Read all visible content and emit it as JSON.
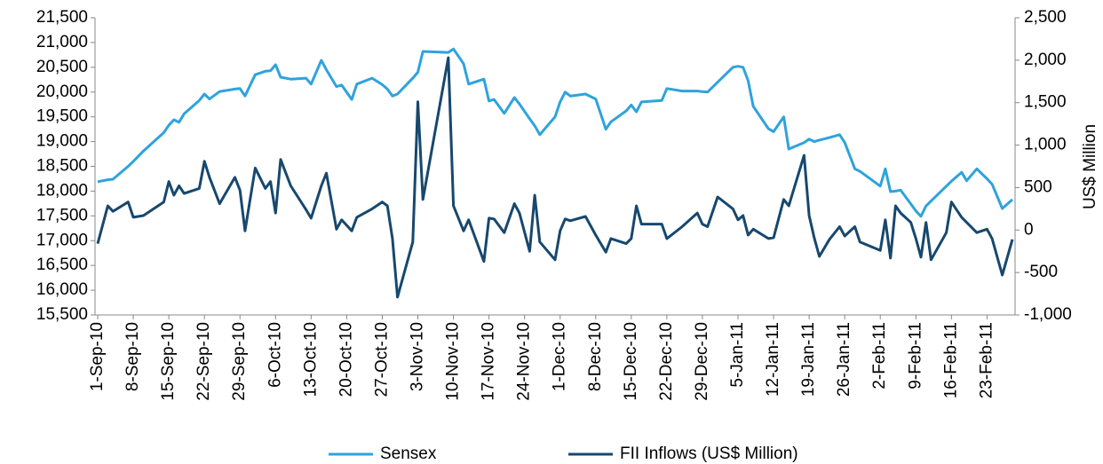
{
  "chart_data": {
    "type": "line",
    "x": [
      "2010-09-01",
      "2010-09-03",
      "2010-09-04",
      "2010-09-07",
      "2010-09-08",
      "2010-09-10",
      "2010-09-14",
      "2010-09-15",
      "2010-09-16",
      "2010-09-17",
      "2010-09-18",
      "2010-09-21",
      "2010-09-22",
      "2010-09-23",
      "2010-09-25",
      "2010-09-28",
      "2010-09-29",
      "2010-09-30",
      "2010-10-02",
      "2010-10-04",
      "2010-10-05",
      "2010-10-06",
      "2010-10-07",
      "2010-10-09",
      "2010-10-12",
      "2010-10-13",
      "2010-10-15",
      "2010-10-16",
      "2010-10-18",
      "2010-10-19",
      "2010-10-21",
      "2010-10-22",
      "2010-10-25",
      "2010-10-27",
      "2010-10-28",
      "2010-10-29",
      "2010-10-30",
      "2010-11-02",
      "2010-11-03",
      "2010-11-04",
      "2010-11-09",
      "2010-11-10",
      "2010-11-12",
      "2010-11-13",
      "2010-11-16",
      "2010-11-17",
      "2010-11-18",
      "2010-11-20",
      "2010-11-22",
      "2010-11-23",
      "2010-11-25",
      "2010-11-26",
      "2010-11-27",
      "2010-11-30",
      "2010-12-01",
      "2010-12-02",
      "2010-12-03",
      "2010-12-06",
      "2010-12-08",
      "2010-12-10",
      "2010-12-11",
      "2010-12-14",
      "2010-12-15",
      "2010-12-16",
      "2010-12-17",
      "2010-12-21",
      "2010-12-22",
      "2010-12-25",
      "2010-12-28",
      "2010-12-29",
      "2010-12-30",
      "2011-01-01",
      "2011-01-04",
      "2011-01-05",
      "2011-01-06",
      "2011-01-07",
      "2011-01-08",
      "2011-01-11",
      "2011-01-12",
      "2011-01-14",
      "2011-01-15",
      "2011-01-18",
      "2011-01-19",
      "2011-01-20",
      "2011-01-21",
      "2011-01-23",
      "2011-01-25",
      "2011-01-26",
      "2011-01-28",
      "2011-01-29",
      "2011-02-02",
      "2011-02-03",
      "2011-02-04",
      "2011-02-05",
      "2011-02-06",
      "2011-02-08",
      "2011-02-09",
      "2011-02-10",
      "2011-02-11",
      "2011-02-12",
      "2011-02-15",
      "2011-02-16",
      "2011-02-18",
      "2011-02-19",
      "2011-02-21",
      "2011-02-23",
      "2011-02-24",
      "2011-02-26",
      "2011-02-28"
    ],
    "series": [
      {
        "name": "Sensex",
        "color": "#2ea3dc",
        "values": [
          18190,
          18230,
          18240,
          18500,
          18600,
          18810,
          19180,
          19330,
          19440,
          19390,
          19560,
          19830,
          19960,
          19860,
          20010,
          20060,
          20070,
          19920,
          20350,
          20420,
          20430,
          20550,
          20300,
          20260,
          20280,
          20160,
          20640,
          20450,
          20110,
          20140,
          19850,
          20160,
          20280,
          20150,
          20060,
          19920,
          19960,
          20280,
          20400,
          20820,
          20800,
          20870,
          20570,
          20160,
          20260,
          19820,
          19850,
          19570,
          19890,
          19760,
          19460,
          19320,
          19140,
          19500,
          19800,
          20000,
          19920,
          19960,
          19860,
          19250,
          19400,
          19620,
          19740,
          19600,
          19800,
          19830,
          20070,
          20020,
          20020,
          20010,
          20000,
          20200,
          20500,
          20520,
          20500,
          20230,
          19710,
          19260,
          19200,
          19500,
          18850,
          18980,
          19050,
          19000,
          19030,
          19080,
          19140,
          18980,
          18450,
          18400,
          18100,
          18450,
          17990,
          18000,
          18020,
          17740,
          17600,
          17490,
          17700,
          17800,
          18100,
          18200,
          18380,
          18210,
          18450,
          18250,
          18140,
          17650,
          17830
        ]
      },
      {
        "name": "FII Inflows (US$ Million)",
        "color": "#17486e",
        "axis": "y2",
        "values": [
          -160,
          285,
          220,
          330,
          150,
          170,
          330,
          570,
          410,
          520,
          430,
          490,
          810,
          620,
          310,
          620,
          470,
          -10,
          730,
          490,
          570,
          200,
          830,
          520,
          240,
          140,
          520,
          670,
          10,
          120,
          -10,
          150,
          250,
          330,
          285,
          -100,
          -790,
          -140,
          1510,
          360,
          2030,
          285,
          -10,
          120,
          -370,
          140,
          130,
          -30,
          310,
          200,
          -250,
          410,
          -140,
          -350,
          -10,
          130,
          110,
          160,
          -60,
          -260,
          -100,
          -160,
          -100,
          285,
          70,
          70,
          -100,
          40,
          200,
          70,
          40,
          390,
          250,
          120,
          170,
          -60,
          10,
          -100,
          -90,
          360,
          285,
          880,
          170,
          -90,
          -310,
          -110,
          40,
          -70,
          40,
          -140,
          -240,
          120,
          -330,
          285,
          200,
          90,
          -100,
          -320,
          90,
          -350,
          -30,
          330,
          150,
          90,
          -30,
          10,
          -100,
          -530,
          -110
        ]
      }
    ],
    "xlim": [
      "2010-09-01",
      "2011-02-28"
    ],
    "xticks": [
      {
        "value": "2010-09-01",
        "label": "1-Sep-10"
      },
      {
        "value": "2010-09-08",
        "label": "8-Sep-10"
      },
      {
        "value": "2010-09-15",
        "label": "15-Sep-10"
      },
      {
        "value": "2010-09-22",
        "label": "22-Sep-10"
      },
      {
        "value": "2010-09-29",
        "label": "29-Sep-10"
      },
      {
        "value": "2010-10-06",
        "label": "6-Oct-10"
      },
      {
        "value": "2010-10-13",
        "label": "13-Oct-10"
      },
      {
        "value": "2010-10-20",
        "label": "20-Oct-10"
      },
      {
        "value": "2010-10-27",
        "label": "27-Oct-10"
      },
      {
        "value": "2010-11-03",
        "label": "3-Nov-10"
      },
      {
        "value": "2010-11-10",
        "label": "10-Nov-10"
      },
      {
        "value": "2010-11-17",
        "label": "17-Nov-10"
      },
      {
        "value": "2010-11-24",
        "label": "24-Nov-10"
      },
      {
        "value": "2010-12-01",
        "label": "1-Dec-10"
      },
      {
        "value": "2010-12-08",
        "label": "8-Dec-10"
      },
      {
        "value": "2010-12-15",
        "label": "15-Dec-10"
      },
      {
        "value": "2010-12-22",
        "label": "22-Dec-10"
      },
      {
        "value": "2010-12-29",
        "label": "29-Dec-10"
      },
      {
        "value": "2011-01-05",
        "label": "5-Jan-11"
      },
      {
        "value": "2011-01-12",
        "label": "12-Jan-11"
      },
      {
        "value": "2011-01-19",
        "label": "19-Jan-11"
      },
      {
        "value": "2011-01-26",
        "label": "26-Jan-11"
      },
      {
        "value": "2011-02-02",
        "label": "2-Feb-11"
      },
      {
        "value": "2011-02-09",
        "label": "9-Feb-11"
      },
      {
        "value": "2011-02-16",
        "label": "16-Feb-11"
      },
      {
        "value": "2011-02-23",
        "label": "23-Feb-11"
      }
    ],
    "ylim": [
      15500,
      21500
    ],
    "yticks": [
      {
        "value": 15500,
        "label": "15,500"
      },
      {
        "value": 16000,
        "label": "16,000"
      },
      {
        "value": 16500,
        "label": "16,500"
      },
      {
        "value": 17000,
        "label": "17,000"
      },
      {
        "value": 17500,
        "label": "17,500"
      },
      {
        "value": 18000,
        "label": "18,000"
      },
      {
        "value": 18500,
        "label": "18,500"
      },
      {
        "value": 19000,
        "label": "19,000"
      },
      {
        "value": 19500,
        "label": "19,500"
      },
      {
        "value": 20000,
        "label": "20,000"
      },
      {
        "value": 20500,
        "label": "20,500"
      },
      {
        "value": 21000,
        "label": "21,000"
      },
      {
        "value": 21500,
        "label": "21,500"
      }
    ],
    "y2lim": [
      -1000,
      2500
    ],
    "y2ticks": [
      {
        "value": -1000,
        "label": "-1,000"
      },
      {
        "value": -500,
        "label": "-500"
      },
      0,
      500,
      {
        "value": 1000,
        "label": "1,000"
      },
      {
        "value": 1500,
        "label": "1,500"
      },
      {
        "value": 2000,
        "label": "2,000"
      },
      {
        "value": 2500,
        "label": "2,500"
      }
    ],
    "y2label": "US$ Million",
    "legend": "bottom"
  }
}
